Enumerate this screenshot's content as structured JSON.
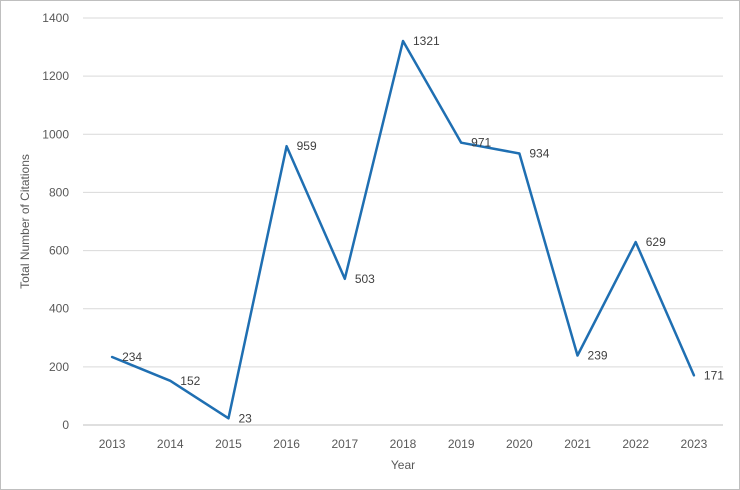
{
  "chart_data": {
    "type": "line",
    "title": "",
    "xlabel": "Year",
    "ylabel": "Total Number of Citations",
    "categories": [
      "2013",
      "2014",
      "2015",
      "2016",
      "2017",
      "2018",
      "2019",
      "2020",
      "2021",
      "2022",
      "2023"
    ],
    "series": [
      {
        "values": [
          234,
          152,
          23,
          959,
          503,
          1321,
          971,
          934,
          239,
          629,
          171
        ]
      }
    ],
    "ylim": [
      0,
      1400
    ],
    "yticks": [
      0,
      200,
      400,
      600,
      800,
      1000,
      1200,
      1400
    ],
    "grid": true,
    "legend": "none",
    "data_labels": true,
    "colors": {
      "line": "#1f6fb2",
      "grid": "#d9d9d9",
      "axis": "#bfbfbf"
    }
  }
}
